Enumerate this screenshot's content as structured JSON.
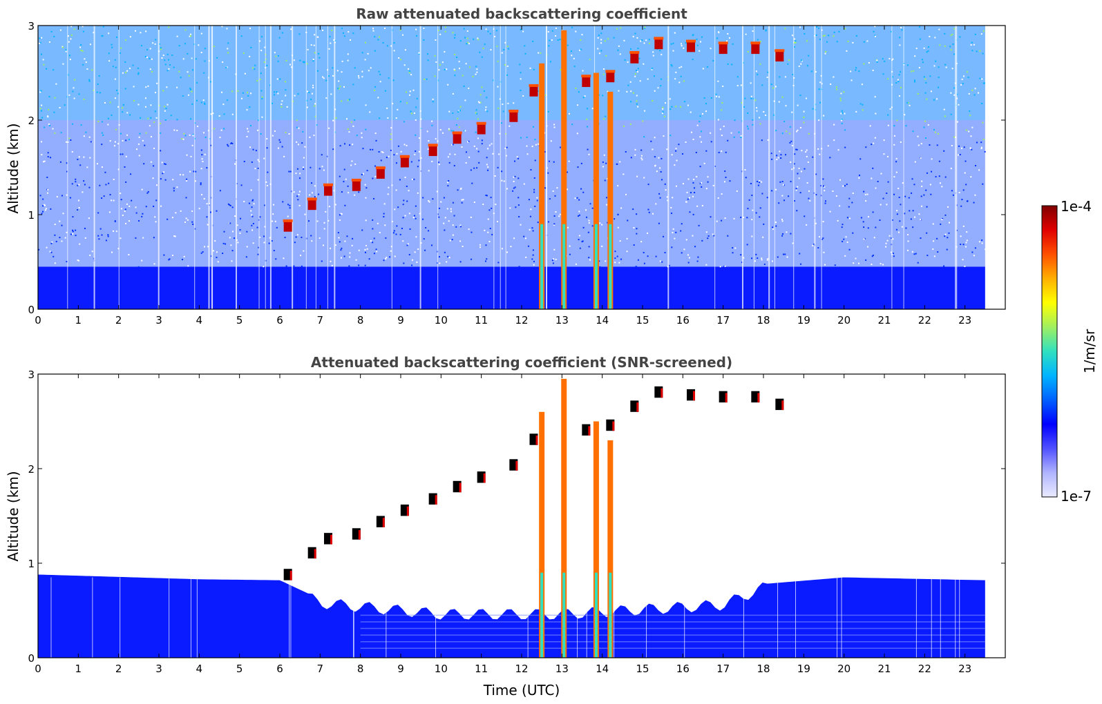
{
  "chart_data": [
    {
      "type": "heatmap",
      "title": "Raw attenuated backscattering coefficient",
      "ylabel": "Altitude (km)",
      "xlabel": "",
      "xlim": [
        0,
        24
      ],
      "ylim": [
        0,
        3
      ],
      "x_ticks": [
        "0",
        "1",
        "2",
        "3",
        "4",
        "5",
        "6",
        "7",
        "8",
        "9",
        "10",
        "11",
        "12",
        "13",
        "14",
        "15",
        "16",
        "17",
        "18",
        "19",
        "20",
        "21",
        "22",
        "23"
      ],
      "y_ticks": [
        "0",
        "1",
        "2",
        "3"
      ],
      "data_extent_hours": [
        0,
        23.5
      ],
      "boundary_layer_top_km": 0.45,
      "noisy_signal_region": {
        "base_km": 0.8,
        "top_km": 3.0
      },
      "rising_aerosol_layer": [
        {
          "t": 6.2,
          "alt": 0.82
        },
        {
          "t": 6.8,
          "alt": 1.05
        },
        {
          "t": 7.2,
          "alt": 1.2
        },
        {
          "t": 7.9,
          "alt": 1.25
        },
        {
          "t": 8.5,
          "alt": 1.38
        },
        {
          "t": 9.1,
          "alt": 1.5
        },
        {
          "t": 9.8,
          "alt": 1.62
        },
        {
          "t": 10.4,
          "alt": 1.75
        },
        {
          "t": 11.0,
          "alt": 1.85
        },
        {
          "t": 11.8,
          "alt": 1.98
        },
        {
          "t": 12.3,
          "alt": 2.25
        },
        {
          "t": 13.6,
          "alt": 2.35
        },
        {
          "t": 14.2,
          "alt": 2.4
        },
        {
          "t": 14.8,
          "alt": 2.6
        },
        {
          "t": 15.4,
          "alt": 2.75
        },
        {
          "t": 16.2,
          "alt": 2.72
        },
        {
          "t": 17.0,
          "alt": 2.7
        },
        {
          "t": 17.8,
          "alt": 2.7
        },
        {
          "t": 18.4,
          "alt": 2.62
        }
      ],
      "precipitation_streaks": [
        {
          "t": 12.5,
          "top_km": 2.6
        },
        {
          "t": 13.05,
          "top_km": 2.95
        },
        {
          "t": 13.85,
          "top_km": 2.5
        },
        {
          "t": 14.2,
          "top_km": 2.3
        }
      ]
    },
    {
      "type": "heatmap",
      "title": "Attenuated backscattering coefficient (SNR-screened)",
      "ylabel": "Altitude (km)",
      "xlabel": "Time (UTC)",
      "xlim": [
        0,
        24
      ],
      "ylim": [
        0,
        3
      ],
      "x_ticks": [
        "0",
        "1",
        "2",
        "3",
        "4",
        "5",
        "6",
        "7",
        "8",
        "9",
        "10",
        "11",
        "12",
        "13",
        "14",
        "15",
        "16",
        "17",
        "18",
        "19",
        "20",
        "21",
        "22",
        "23"
      ],
      "y_ticks": [
        "0",
        "1",
        "2",
        "3"
      ],
      "boundary_layer_top_km": [
        {
          "t": 0,
          "alt": 0.88
        },
        {
          "t": 4,
          "alt": 0.83
        },
        {
          "t": 6,
          "alt": 0.82
        },
        {
          "t": 7,
          "alt": 0.62
        },
        {
          "t": 10,
          "alt": 0.5
        },
        {
          "t": 13,
          "alt": 0.5
        },
        {
          "t": 15,
          "alt": 0.55
        },
        {
          "t": 17,
          "alt": 0.6
        },
        {
          "t": 18,
          "alt": 0.78
        },
        {
          "t": 20,
          "alt": 0.85
        },
        {
          "t": 23.5,
          "alt": 0.82
        }
      ]
    }
  ],
  "colorbar": {
    "label": "1/m/sr",
    "max_label": "1e-4",
    "min_label": "1e-7",
    "scale": "log",
    "range": [
      1e-07,
      0.0001
    ],
    "colormap": [
      "#eaeaff",
      "#b0b4ff",
      "#5050ff",
      "#0000ff",
      "#0060ff",
      "#00b4ff",
      "#30e0c0",
      "#a0f060",
      "#ffff00",
      "#ffb000",
      "#ff5000",
      "#e00000",
      "#800000"
    ]
  }
}
